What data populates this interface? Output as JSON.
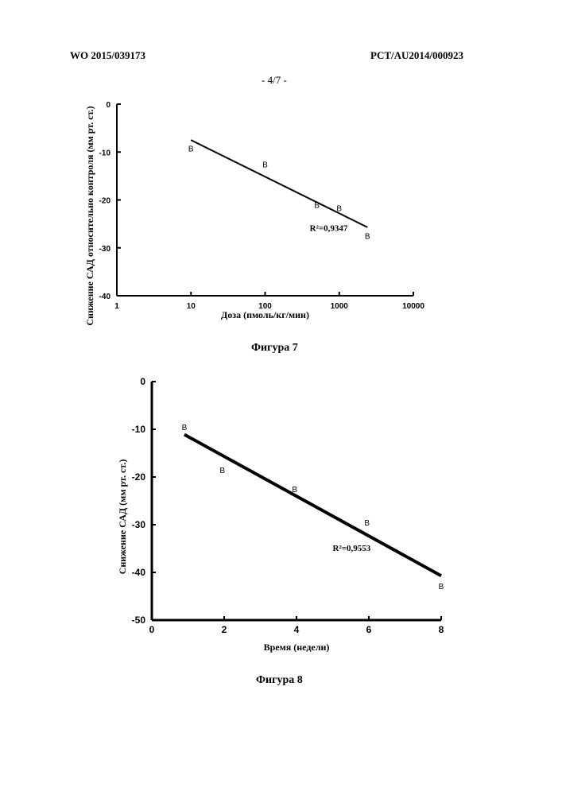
{
  "header": {
    "left": "WO 2015/039173",
    "right": "PCT/AU2014/000923",
    "page": "- 4/7 -"
  },
  "chart_data": [
    {
      "type": "scatter",
      "caption": "Фигура 7",
      "xlabel": "Доза (пмоль/кг/мин)",
      "ylabel": "Снижение САД относительно контроля (мм рт. ст.)",
      "xscale": "log",
      "xlim": [
        1,
        10000
      ],
      "ylim": [
        -40,
        0
      ],
      "xticks": [
        1,
        10,
        100,
        1000,
        10000
      ],
      "xticklabels": [
        "1",
        "10",
        "100",
        "1000",
        "10000"
      ],
      "yticks": [
        0,
        -10,
        -20,
        -30,
        -40
      ],
      "yticklabels": [
        "0",
        "-10",
        "-20",
        "-30",
        "-40"
      ],
      "marker": "B",
      "points": [
        {
          "x": 10,
          "y": -9.2
        },
        {
          "x": 100,
          "y": -12.5
        },
        {
          "x": 500,
          "y": -21.0
        },
        {
          "x": 1000,
          "y": -21.7
        },
        {
          "x": 2400,
          "y": -27.5
        }
      ],
      "fit_line": {
        "x": [
          10,
          2400
        ],
        "y": [
          -7.5,
          -25.7
        ]
      },
      "annotation": {
        "text": "R²=0,9347",
        "x": 400,
        "y": -26.5
      },
      "grid": false
    },
    {
      "type": "scatter",
      "caption": "Фигура 8",
      "xlabel": "Время (недели)",
      "ylabel": "Снижение САД (мм рт. ст.)",
      "xlim": [
        0,
        8
      ],
      "ylim": [
        -50,
        0
      ],
      "xticks": [
        0,
        2,
        4,
        6,
        8
      ],
      "xticklabels": [
        "0",
        "2",
        "4",
        "6",
        "8"
      ],
      "yticks": [
        0,
        -10,
        -20,
        -30,
        -40,
        -50
      ],
      "yticklabels": [
        "0",
        "-10",
        "-20",
        "-30",
        "-40",
        "-50"
      ],
      "marker": "B",
      "points": [
        {
          "x": 0.9,
          "y": -9.5
        },
        {
          "x": 1.95,
          "y": -18.5
        },
        {
          "x": 3.95,
          "y": -22.5
        },
        {
          "x": 5.95,
          "y": -29.5
        },
        {
          "x": 8.0,
          "y": -42.8
        }
      ],
      "fit_line": {
        "x": [
          0.9,
          8.0
        ],
        "y": [
          -11.1,
          -40.7
        ]
      },
      "annotation": {
        "text": "R²=0,9553",
        "x": 5.0,
        "y": -35.5
      },
      "grid": false
    }
  ]
}
